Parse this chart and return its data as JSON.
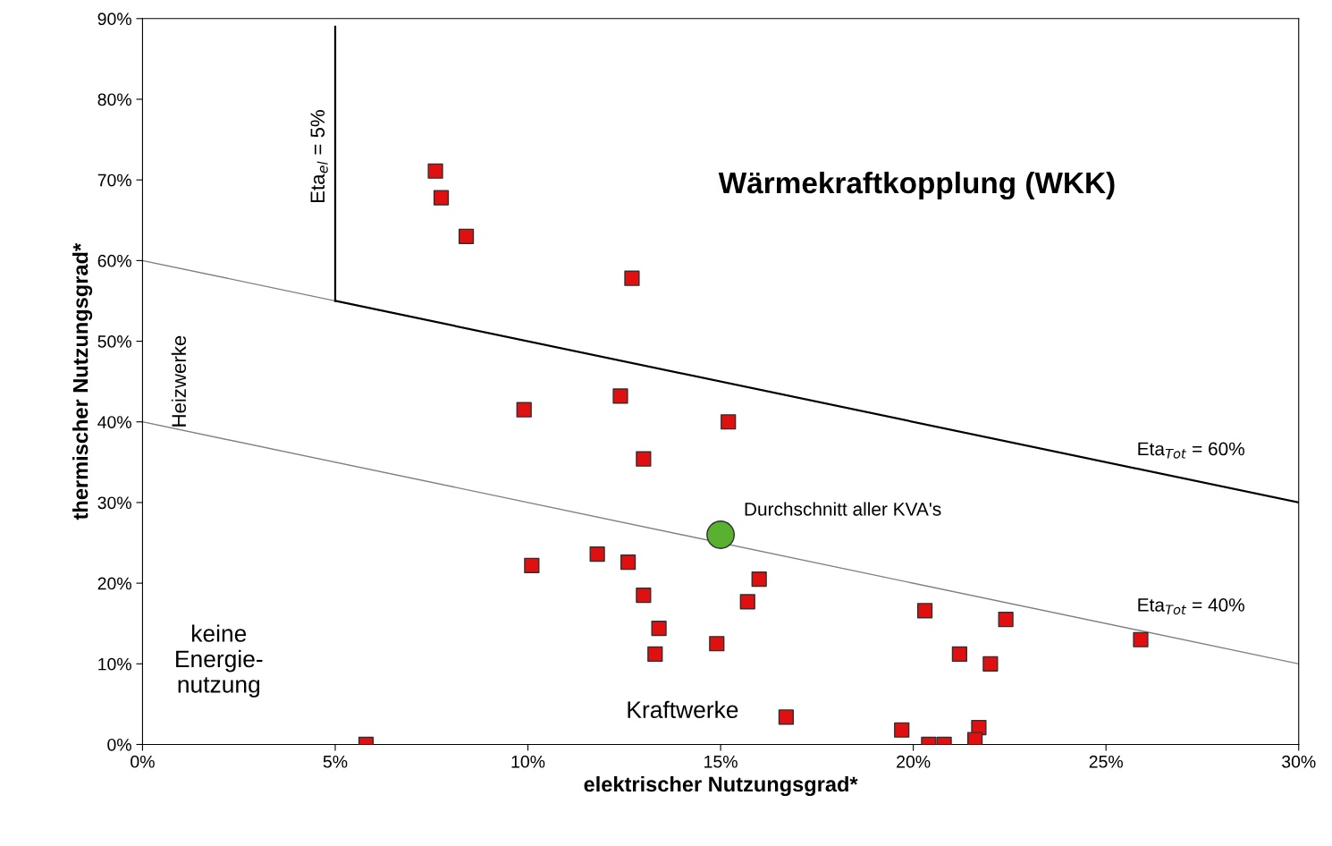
{
  "chart_data": {
    "type": "scatter",
    "xlabel": "elektrischer Nutzungsgrad*",
    "ylabel": "thermischer Nutzungsgrad*",
    "xlim": [
      0,
      30
    ],
    "ylim": [
      0,
      90
    ],
    "xticks": [
      {
        "value": 0,
        "label": "0%"
      },
      {
        "value": 5,
        "label": "5%"
      },
      {
        "value": 10,
        "label": "10%"
      },
      {
        "value": 15,
        "label": "15%"
      },
      {
        "value": 20,
        "label": "20%"
      },
      {
        "value": 25,
        "label": "25%"
      },
      {
        "value": 30,
        "label": "30%"
      }
    ],
    "yticks": [
      {
        "value": 0,
        "label": "0%"
      },
      {
        "value": 10,
        "label": "10%"
      },
      {
        "value": 20,
        "label": "20%"
      },
      {
        "value": 30,
        "label": "30%"
      },
      {
        "value": 40,
        "label": "40%"
      },
      {
        "value": 50,
        "label": "50%"
      },
      {
        "value": 60,
        "label": "60%"
      },
      {
        "value": 70,
        "label": "70%"
      },
      {
        "value": 80,
        "label": "80%"
      },
      {
        "value": 90,
        "label": "90%"
      }
    ],
    "grid": false,
    "legend": false,
    "series": [
      {
        "type": "line",
        "color": "#808080",
        "x": [
          0,
          5
        ],
        "values": [
          60,
          55
        ]
      },
      {
        "type": "line",
        "color": "#000000",
        "x": [
          5,
          30
        ],
        "values": [
          55,
          30
        ]
      },
      {
        "type": "line",
        "color": "#808080",
        "x": [
          0,
          30
        ],
        "values": [
          40,
          10
        ]
      },
      {
        "type": "line",
        "color": "#000000",
        "x": [
          5,
          5
        ],
        "values": [
          55,
          89
        ]
      },
      {
        "marker": "square",
        "color": "#e01010",
        "x": [
          7.6,
          7.75,
          8.4,
          12.7,
          9.9,
          12.4,
          15.2,
          13.0,
          11.8,
          12.6,
          10.1,
          13.0,
          16.0,
          15.7,
          13.4,
          13.3,
          14.9,
          20.3,
          22.4,
          25.9,
          21.2,
          22.0,
          16.7,
          19.7,
          21.7,
          21.6,
          20.4,
          20.8,
          5.8
        ],
        "values": [
          71.1,
          67.8,
          63.0,
          57.8,
          41.5,
          43.2,
          40.0,
          35.4,
          23.6,
          22.6,
          22.2,
          18.5,
          20.5,
          17.7,
          14.4,
          11.2,
          12.5,
          16.6,
          15.5,
          13.0,
          11.2,
          10.0,
          3.4,
          1.8,
          2.1,
          0.6,
          0,
          0,
          0
        ]
      },
      {
        "marker": "circle",
        "color": "#5ab030",
        "x": [
          15.0
        ],
        "values": [
          26.0
        ]
      }
    ],
    "annotations": [
      "Wärmekraftkopplung (WKK)",
      "Eta$_{el}$ = 5%",
      "Heizwerke",
      "Eta$_{Tot}$ = 60%",
      "Eta$_{Tot}$ = 40%",
      "Durchschnitt aller KVA's",
      "keine\nEnergie-\nnutzung",
      "Kraftwerke"
    ]
  }
}
